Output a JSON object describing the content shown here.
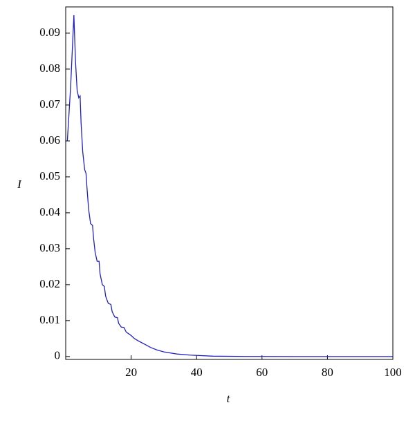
{
  "chart_data": {
    "type": "line",
    "x_label": "t",
    "y_label": "I",
    "x": [
      0.5,
      1.5,
      2.5,
      3.0,
      3.5,
      4.0,
      4.4,
      4.7,
      5.2,
      5.8,
      6.2,
      6.5,
      7.0,
      7.6,
      8.2,
      8.5,
      9.0,
      9.6,
      10.2,
      10.5,
      11.2,
      11.8,
      12.2,
      13.0,
      13.8,
      14.2,
      15.0,
      15.8,
      16.2,
      17.0,
      17.8,
      18.5,
      19.8,
      21,
      22.5,
      24,
      26,
      28,
      30,
      34,
      38,
      45,
      55,
      70,
      100
    ],
    "series": [
      {
        "name": "I",
        "color": "#2020c8",
        "values": [
          0.06,
          0.075,
          0.095,
          0.082,
          0.074,
          0.072,
          0.0725,
          0.065,
          0.057,
          0.052,
          0.051,
          0.047,
          0.041,
          0.037,
          0.0365,
          0.033,
          0.029,
          0.0265,
          0.0265,
          0.023,
          0.02,
          0.0195,
          0.0168,
          0.0148,
          0.0145,
          0.0125,
          0.011,
          0.0108,
          0.0092,
          0.0082,
          0.0081,
          0.0068,
          0.006,
          0.005,
          0.0042,
          0.0035,
          0.0025,
          0.0018,
          0.0013,
          0.0007,
          0.0004,
          0.0001,
          2e-05,
          0,
          0
        ]
      }
    ],
    "xlim": [
      0,
      100
    ],
    "ylim": [
      -0.0008,
      0.0973
    ],
    "xticks": [
      20,
      40,
      60,
      80,
      100
    ],
    "yticks": [
      0,
      0.01,
      0.02,
      0.03,
      0.04,
      0.05,
      0.06,
      0.07,
      0.08,
      0.09
    ]
  }
}
